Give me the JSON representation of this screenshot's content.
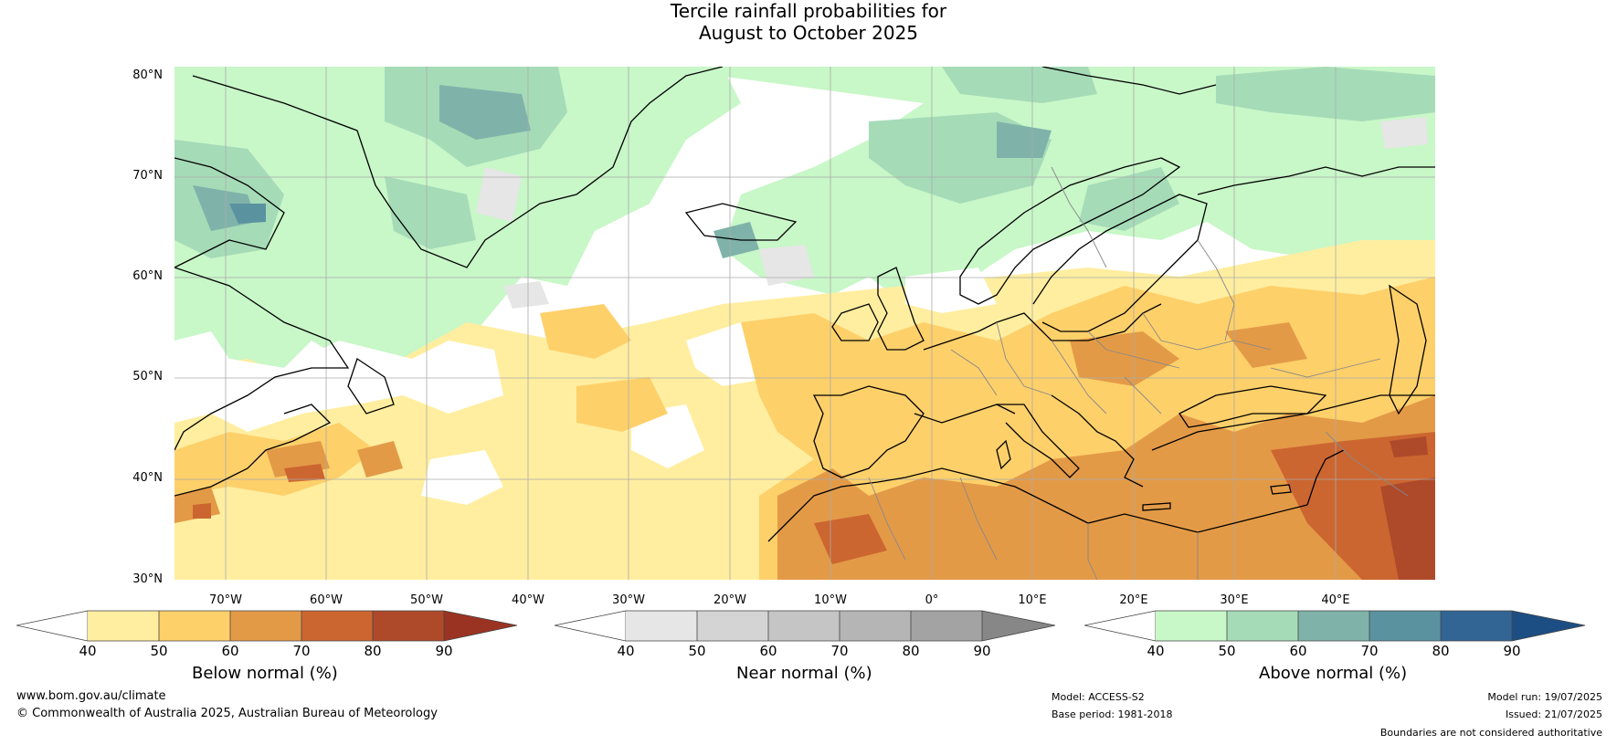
{
  "title": {
    "line1": "Tercile rainfall probabilities for",
    "line2": "August to October 2025"
  },
  "lat_labels": [
    "80°N",
    "70°N",
    "60°N",
    "50°N",
    "40°N",
    "30°N"
  ],
  "lon_labels": [
    "70°W",
    "60°W",
    "50°W",
    "40°W",
    "30°W",
    "20°W",
    "10°W",
    "0°",
    "10°E",
    "20°E",
    "30°E",
    "40°E"
  ],
  "colorbars": [
    {
      "label": "Below normal (%)",
      "ticks": [
        "40",
        "50",
        "60",
        "70",
        "80",
        "90"
      ],
      "colors": [
        "#ffffff",
        "#ffeea0",
        "#fed06a",
        "#e39a47",
        "#cc6630",
        "#ae4a2a",
        "#9b3322"
      ]
    },
    {
      "label": "Near normal (%)",
      "ticks": [
        "40",
        "50",
        "60",
        "70",
        "80",
        "90"
      ],
      "colors": [
        "#ffffff",
        "#e6e6e6",
        "#d4d4d4",
        "#c5c5c5",
        "#b5b5b5",
        "#a3a3a3",
        "#878787"
      ]
    },
    {
      "label": "Above normal (%)",
      "ticks": [
        "40",
        "50",
        "60",
        "70",
        "80",
        "90"
      ],
      "colors": [
        "#ffffff",
        "#c8f7c8",
        "#a6dbb8",
        "#7fb3aa",
        "#5a92a0",
        "#326494",
        "#1c4e84"
      ]
    }
  ],
  "footer": {
    "website": "www.bom.gov.au/climate",
    "copyright": "© Commonwealth of Australia 2025, Australian Bureau of Meteorology",
    "model": "Model: ACCESS-S2",
    "base_period": "Base period: 1981-2018",
    "model_run": "Model run: 19/07/2025",
    "issued": "Issued: 21/07/2025",
    "disclaimer": "Boundaries are not considered authoritative"
  }
}
